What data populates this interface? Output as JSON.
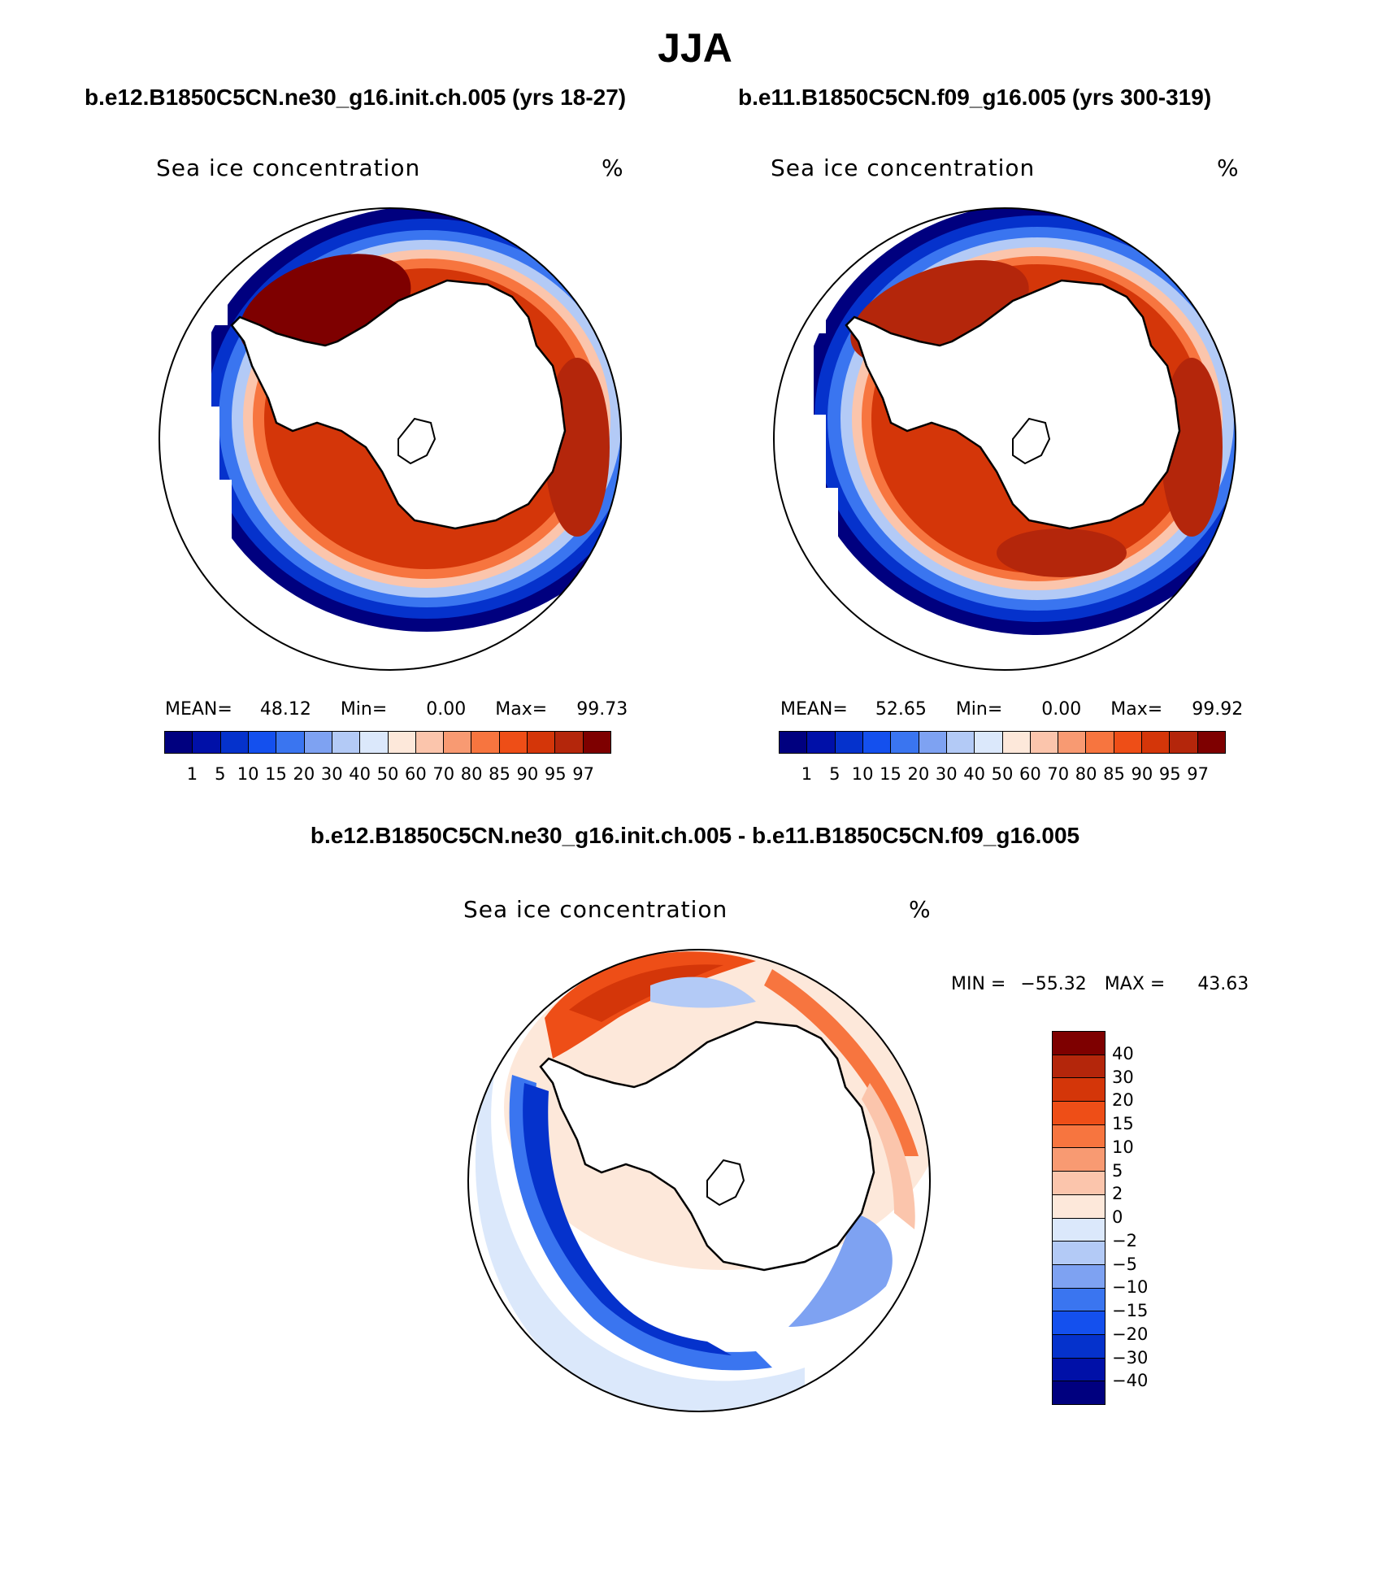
{
  "figure": {
    "title": "JJA",
    "left_panel": {
      "run_title": "b.e12.B1850C5CN.ne30_g16.init.ch.005 (yrs 18-27)",
      "field_label": "Sea ice concentration",
      "units": "%",
      "mean_label": "MEAN=",
      "mean_value": "48.12",
      "min_label": "Min=",
      "min_value": "0.00",
      "max_label": "Max=",
      "max_value": "99.73"
    },
    "right_panel": {
      "run_title": "b.e11.B1850C5CN.f09_g16.005 (yrs 300-319)",
      "field_label": "Sea ice concentration",
      "units": "%",
      "mean_label": "MEAN=",
      "mean_value": "52.65",
      "min_label": "Min=",
      "min_value": "0.00",
      "max_label": "Max=",
      "max_value": "99.92"
    },
    "diff_panel": {
      "title": "b.e12.B1850C5CN.ne30_g16.init.ch.005 - b.e11.B1850C5CN.f09_g16.005",
      "field_label": "Sea ice concentration",
      "units": "%",
      "min_label": "MIN =",
      "min_value": "−55.32",
      "max_label": "MAX =",
      "max_value": "43.63"
    },
    "concentration_scale": {
      "levels": [
        "1",
        "5",
        "10",
        "15",
        "20",
        "30",
        "40",
        "50",
        "60",
        "70",
        "80",
        "85",
        "90",
        "95",
        "97"
      ],
      "colors": [
        "#00007f",
        "#0010a8",
        "#0532cc",
        "#1450ee",
        "#3a75f0",
        "#7ea2f2",
        "#b3caf6",
        "#dbe8fb",
        "#fde8da",
        "#fbc5ac",
        "#f89a72",
        "#f7753f",
        "#ee4e17",
        "#d43609",
        "#b4260b",
        "#7e0000"
      ]
    },
    "difference_scale": {
      "levels": [
        "40",
        "30",
        "20",
        "15",
        "10",
        "5",
        "2",
        "0",
        "−2",
        "−5",
        "−10",
        "−15",
        "−20",
        "−30",
        "−40"
      ],
      "colors": [
        "#7e0000",
        "#b4260b",
        "#d43609",
        "#ee4e17",
        "#f7753f",
        "#f89a72",
        "#fbc5ac",
        "#fde8da",
        "#dbe8fb",
        "#b3caf6",
        "#7ea2f2",
        "#3a75f0",
        "#1450ee",
        "#0532cc",
        "#0010a8",
        "#00007f"
      ]
    }
  }
}
